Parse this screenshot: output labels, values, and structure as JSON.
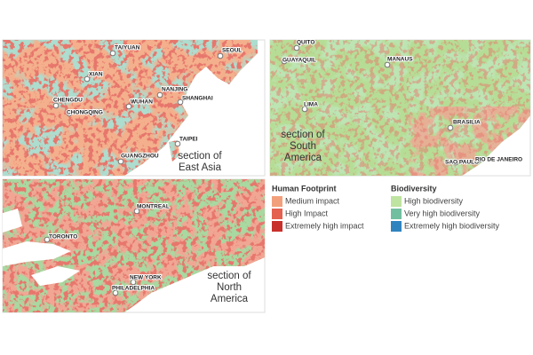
{
  "panels": [
    {
      "caption_lines": [
        "section of",
        "East Asia"
      ],
      "cities": [
        "TAIYUAN",
        "SEOUL",
        "XIAN",
        "NANJING",
        "SHANGHAI",
        "CHENGDU",
        "CHONGQING",
        "WUHAN",
        "TAIPEI",
        "GUANGZHOU"
      ]
    },
    {
      "caption_lines": [
        "section of",
        "South",
        "America"
      ],
      "cities": [
        "QUITO",
        "GUAYAQUIL",
        "MANAUS",
        "LIMA",
        "BRASILIA",
        "SAO PAULO",
        "RIO DE JANEIRO"
      ]
    },
    {
      "caption_lines": [
        "section of",
        "North",
        "America"
      ],
      "cities": [
        "MONTREAL",
        "TORONTO",
        "NEW YORK",
        "PHILADELPHIA"
      ]
    }
  ],
  "legend": {
    "groups": [
      {
        "title": "Human Footprint",
        "items": [
          {
            "label": "Medium impact",
            "color": "#f2a07c"
          },
          {
            "label": "High Impact",
            "color": "#e4604f"
          },
          {
            "label": "Extremely high impact",
            "color": "#c8302b"
          }
        ]
      },
      {
        "title": "Biodiversity",
        "items": [
          {
            "label": "High biodiversity",
            "color": "#bfe3a0"
          },
          {
            "label": "Very high biodiversity",
            "color": "#72bf9f"
          },
          {
            "label": "Extremely high biodiversity",
            "color": "#2f84c0"
          }
        ]
      }
    ]
  }
}
